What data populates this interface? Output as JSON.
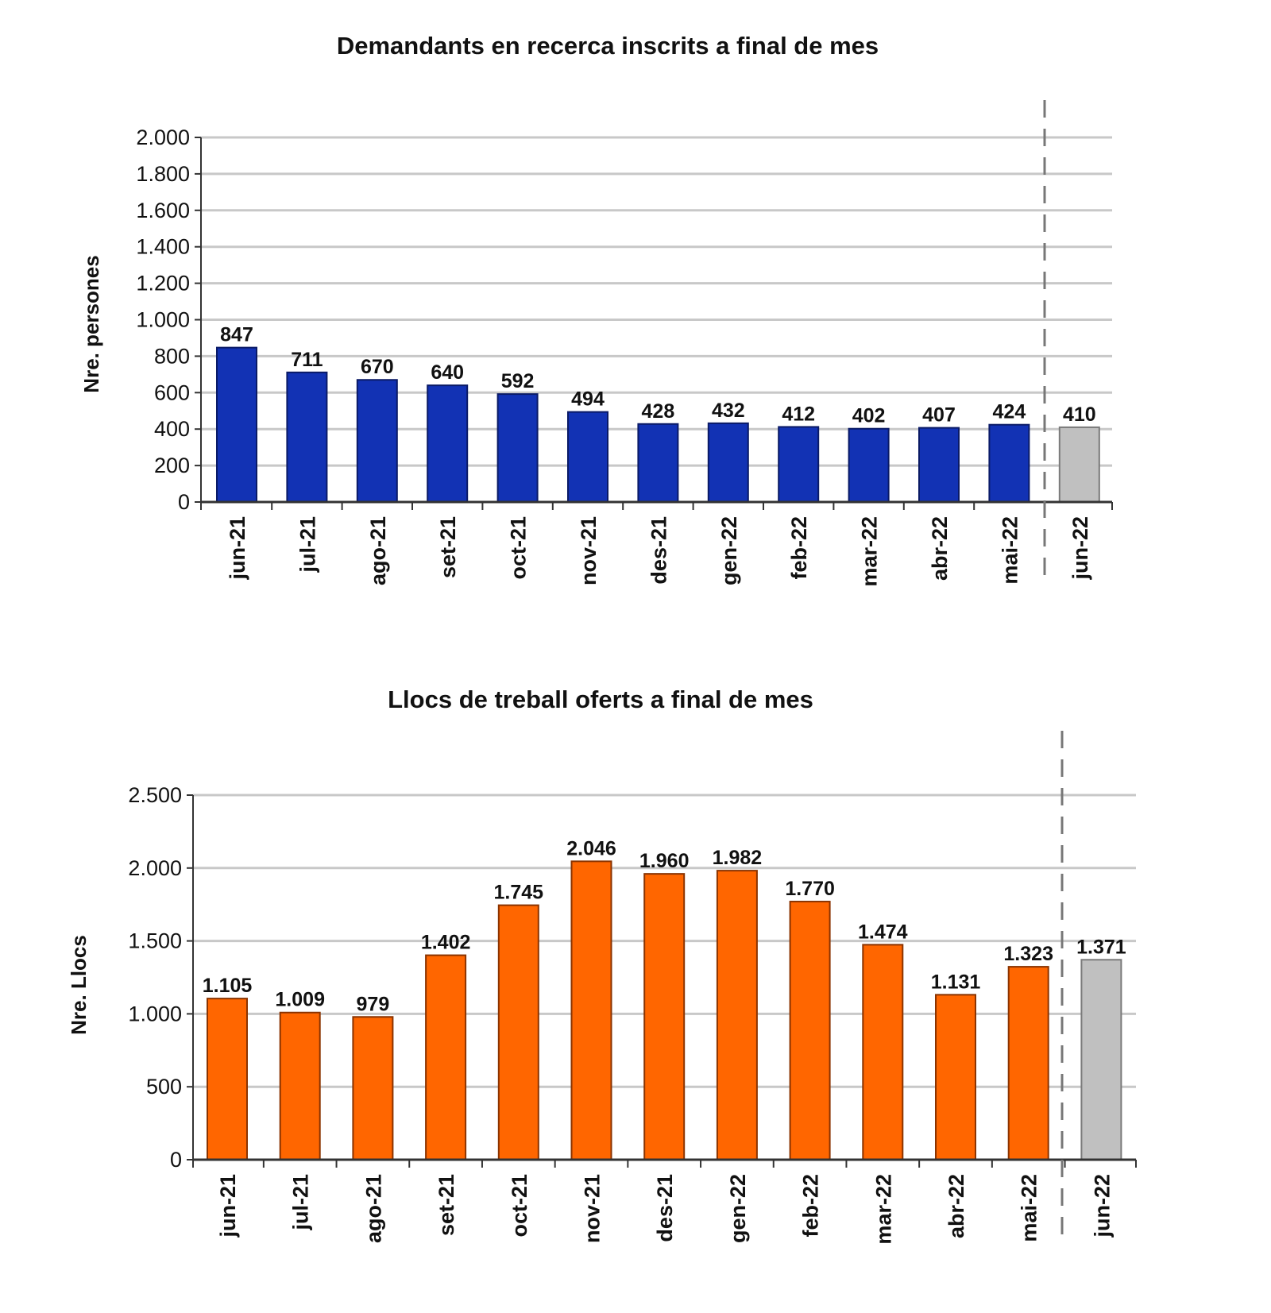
{
  "chart_data": [
    {
      "type": "bar",
      "title": "Demandants en recerca inscrits  a final de mes",
      "xlabel": "",
      "ylabel": "Nre. persones",
      "ylim": [
        0,
        2000
      ],
      "yticks": [
        0,
        200,
        400,
        600,
        800,
        1000,
        1200,
        1400,
        1600,
        1800,
        2000
      ],
      "ytick_labels": [
        "0",
        "200",
        "400",
        "600",
        "800",
        "1.000",
        "1.200",
        "1.400",
        "1.600",
        "1.800",
        "2.000"
      ],
      "categories": [
        "jun-21",
        "jul-21",
        "ago-21",
        "set-21",
        "oct-21",
        "nov-21",
        "des-21",
        "gen-22",
        "feb-22",
        "mar-22",
        "abr-22",
        "mai-22",
        "jun-22"
      ],
      "values": [
        847,
        711,
        670,
        640,
        592,
        494,
        428,
        432,
        412,
        402,
        407,
        424,
        410
      ],
      "value_labels": [
        "847",
        "711",
        "670",
        "640",
        "592",
        "494",
        "428",
        "432",
        "412",
        "402",
        "407",
        "424",
        "410"
      ],
      "grid": true,
      "colors": {
        "bar": "#1232b4",
        "bar_stroke": "#0a1a66",
        "highlight": "#c0c0c0",
        "highlight_label": "#6b6b1e"
      },
      "highlight_last": true
    },
    {
      "type": "bar",
      "title": "Llocs de treball oferts a final de mes",
      "xlabel": "",
      "ylabel": "Nre. Llocs",
      "ylim": [
        0,
        2500
      ],
      "yticks": [
        0,
        500,
        1000,
        1500,
        2000,
        2500
      ],
      "ytick_labels": [
        "0",
        "500",
        "1.000",
        "1.500",
        "2.000",
        "2.500"
      ],
      "categories": [
        "jun-21",
        "jul-21",
        "ago-21",
        "set-21",
        "oct-21",
        "nov-21",
        "des-21",
        "gen-22",
        "feb-22",
        "mar-22",
        "abr-22",
        "mai-22",
        "jun-22"
      ],
      "values": [
        1105,
        1009,
        979,
        1402,
        1745,
        2046,
        1960,
        1982,
        1770,
        1474,
        1131,
        1323,
        1371
      ],
      "value_labels": [
        "1.105",
        "1.009",
        "979",
        "1.402",
        "1.745",
        "2.046",
        "1.960",
        "1.982",
        "1.770",
        "1.474",
        "1.131",
        "1.323",
        "1.371"
      ],
      "grid": true,
      "colors": {
        "bar": "#ff6600",
        "bar_stroke": "#8a3300",
        "highlight": "#c0c0c0",
        "highlight_label": "#6b6b1e"
      },
      "highlight_last": true
    }
  ]
}
